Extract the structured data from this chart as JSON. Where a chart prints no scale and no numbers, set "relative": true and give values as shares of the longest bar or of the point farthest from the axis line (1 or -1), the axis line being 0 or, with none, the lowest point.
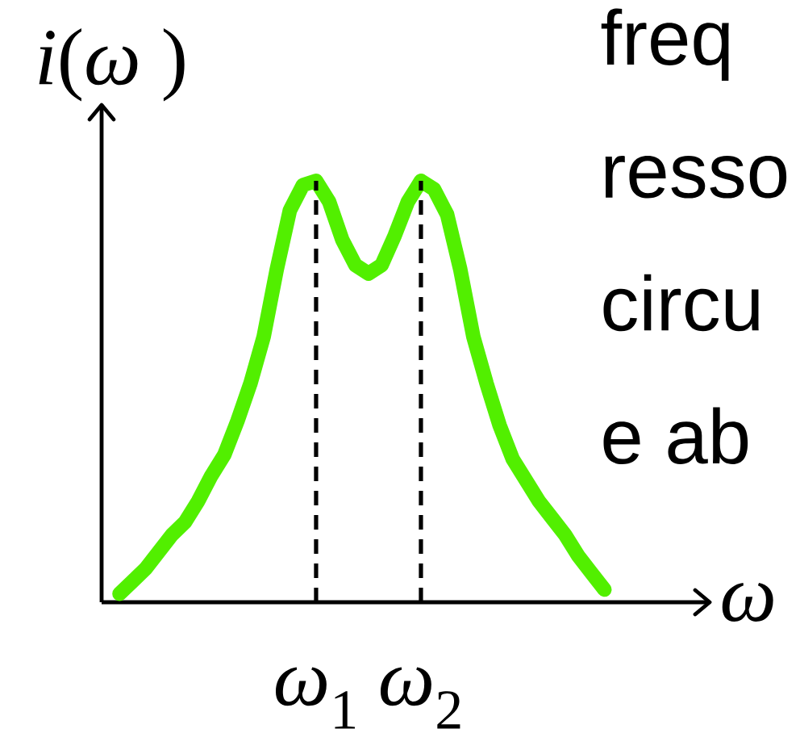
{
  "chart_data": {
    "type": "line",
    "relative": true,
    "categories": [
      null,
      null,
      null,
      null,
      null,
      null,
      null,
      null,
      null,
      null,
      null,
      null,
      null,
      null,
      null,
      "*ω*$_{1}$",
      null,
      null,
      null,
      null,
      null,
      null,
      null,
      "*ω*$_{2}$",
      null,
      null,
      null,
      null,
      null,
      null,
      null,
      null,
      null,
      null,
      null,
      null,
      null,
      null
    ],
    "series": [
      {
        "color": "#52ef00",
        "values": [
          0.02,
          0.05,
          0.08,
          0.12,
          0.16,
          0.19,
          0.24,
          0.3,
          0.35,
          0.43,
          0.52,
          0.63,
          0.79,
          0.93,
          0.99,
          1.0,
          0.95,
          0.86,
          0.8,
          0.78,
          0.8,
          0.87,
          0.95,
          1.0,
          0.98,
          0.92,
          0.79,
          0.63,
          0.52,
          0.42,
          0.34,
          0.29,
          0.24,
          0.2,
          0.16,
          0.11,
          0.07,
          0.03
        ]
      }
    ],
    "xlabel": "ω",
    "ylabel": "*i*(*ω* )",
    "ref_lines": [
      {
        "axis": "x",
        "value": "*ω*$_{1}$",
        "line_style": "dashed",
        "color": "#000000"
      },
      {
        "axis": "x",
        "value": "*ω*$_{2}$",
        "line_style": "dashed",
        "color": "#000000"
      }
    ],
    "annotations": [
      "freq",
      "resso",
      "circu",
      "e ab"
    ]
  }
}
